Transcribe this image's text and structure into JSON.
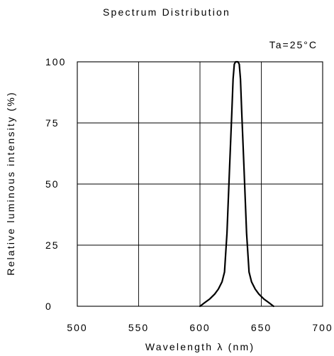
{
  "chart_data": {
    "type": "line",
    "title": "Spectrum Distribution",
    "annotation": "Ta=25°C",
    "xlabel": "Wavelength λ (nm)",
    "ylabel": "Relative luminous intensity (%)",
    "xlim": [
      500,
      700
    ],
    "ylim": [
      0,
      100
    ],
    "xticks": [
      500,
      550,
      600,
      650,
      700
    ],
    "yticks": [
      0,
      25,
      50,
      75,
      100
    ],
    "grid": true,
    "series": [
      {
        "x": [
          600,
          604,
          608,
          612,
          615,
          618,
          620,
          622,
          624,
          626,
          627,
          628,
          629,
          630,
          631,
          632,
          633,
          634,
          636,
          638,
          640,
          642,
          645,
          648,
          652,
          656,
          660
        ],
        "y": [
          0,
          1.5,
          3,
          5,
          7,
          10,
          14,
          30,
          55,
          80,
          93,
          99,
          100,
          100,
          100,
          99,
          93,
          80,
          55,
          30,
          14,
          10,
          7,
          5,
          3,
          1.5,
          0
        ]
      }
    ]
  }
}
